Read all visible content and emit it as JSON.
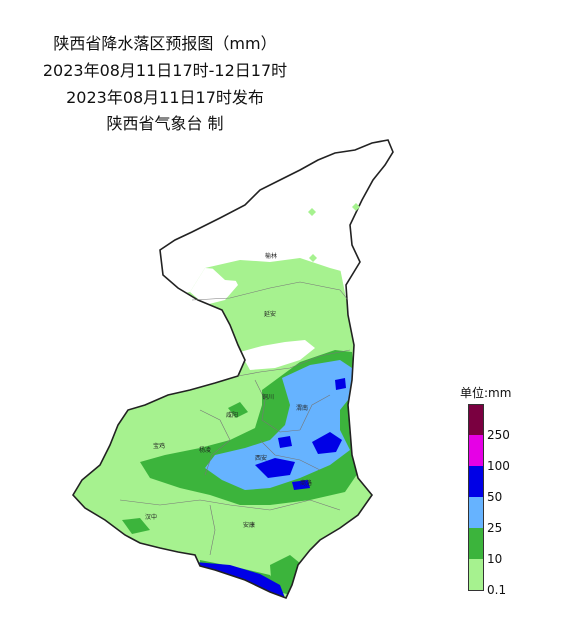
{
  "title": {
    "line1": "陕西省降水落区预报图（mm）",
    "line2": "2023年08月11日17时-12日17时",
    "line3": "2023年08月11日17时发布",
    "line4": "陕西省气象台 制"
  },
  "legend": {
    "title": "单位:mm",
    "classes": [
      {
        "label": "250",
        "color": "#7a0040"
      },
      {
        "label": "100",
        "color": "#e600e6"
      },
      {
        "label": "50",
        "color": "#0000e6"
      },
      {
        "label": "25",
        "color": "#66b3ff"
      },
      {
        "label": "10",
        "color": "#3cb43c"
      },
      {
        "label": "0.1",
        "color": "#a6f28f"
      }
    ]
  },
  "cities": {
    "yulin": "榆林",
    "yanan": "延安",
    "tongchuan": "铜川",
    "weinan": "渭南",
    "xianyang": "咸阳",
    "baoji": "宝鸡",
    "yangling": "杨凌",
    "xian": "西安",
    "shangluo": "商洛",
    "hanzhong": "汉中",
    "ankang": "安康"
  }
}
